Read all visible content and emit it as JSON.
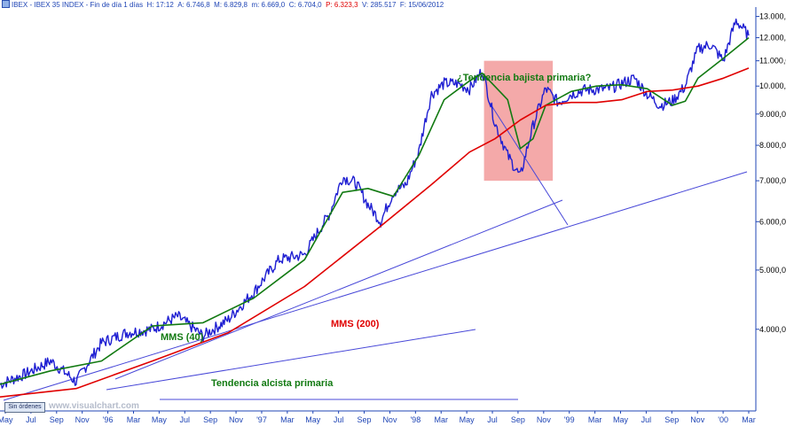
{
  "header": {
    "symbol": "IBEX",
    "name": "IBEX 35 INDEX",
    "period": "Fin de día 1 días",
    "high": "H: 17:12",
    "open": "A: 6.746,8",
    "max": "M: 6.829,8",
    "min": "m: 6.669,0",
    "close": "C: 6.704,0",
    "price": "P: 6.323,3",
    "volume": "V: 285.517",
    "date": "F: 15/06/2012"
  },
  "footer": {
    "button_label": "Sin órdenes",
    "watermark": "www.visualchart.com"
  },
  "colors": {
    "price": "#1e1ed2",
    "mms40": "#127a12",
    "mms200": "#e00000",
    "trend": "#4848d8",
    "box": "#f29a9a",
    "axis_text": "#1f45b5"
  },
  "chart_data": {
    "type": "line",
    "title": "",
    "xlabel": "",
    "ylabel": "",
    "y_axis_position": "right",
    "y_scale": "log",
    "ylim": [
      3000,
      13200
    ],
    "y_ticks": [
      4000,
      5000,
      6000,
      7000,
      8000,
      9000,
      10000,
      11000,
      12000,
      13000
    ],
    "y_tick_labels": [
      "4.000,0",
      "5.000,0",
      "6.000,0",
      "7.000,0",
      "8.000,0",
      "9.000,0",
      "10.000,0",
      "11.000,0",
      "12.000,0",
      "13.000,0"
    ],
    "x_range": [
      "1995-05",
      "2000-04"
    ],
    "x_tick_labels": [
      "May",
      "Jul",
      "Sep",
      "Nov",
      "'96",
      "Mar",
      "May",
      "Jul",
      "Sep",
      "Nov",
      "'97",
      "Mar",
      "May",
      "Jul",
      "Sep",
      "Nov",
      "'98",
      "Mar",
      "May",
      "Jul",
      "Sep",
      "Nov",
      "'99",
      "Mar",
      "May",
      "Jul",
      "Sep",
      "Nov",
      "'00",
      "Mar"
    ],
    "grid": false,
    "series": [
      {
        "name": "",
        "x": [
          "1995-05",
          "1995-07",
          "1995-09",
          "1995-11",
          "1996-01",
          "1996-03",
          "1996-05",
          "1996-07",
          "1996-09",
          "1996-11",
          "1997-01",
          "1997-03",
          "1997-05",
          "1997-07",
          "1997-08",
          "1997-09",
          "1997-10",
          "1997-11",
          "1997-12",
          "1998-01",
          "1998-02",
          "1998-03",
          "1998-04",
          "1998-05",
          "1998-06",
          "1998-07",
          "1998-08",
          "1998-09",
          "1998-10",
          "1998-11",
          "1998-12",
          "1999-01",
          "1999-02",
          "1999-03",
          "1999-05",
          "1999-07",
          "1999-08",
          "1999-09",
          "1999-10",
          "1999-11",
          "1999-12",
          "2000-01",
          "2000-02",
          "2000-03",
          "2000-04"
        ],
        "values": [
          3250,
          3380,
          3550,
          3280,
          3800,
          3950,
          4000,
          4200,
          3900,
          4150,
          4600,
          5200,
          5300,
          6200,
          7100,
          6950,
          6400,
          6000,
          6700,
          6900,
          7800,
          9700,
          10100,
          10100,
          9900,
          10600,
          8700,
          7700,
          7100,
          8600,
          9900,
          9400,
          9700,
          9850,
          9900,
          10300,
          9700,
          9300,
          9450,
          10000,
          11500,
          11700,
          11000,
          12800,
          12100
        ]
      },
      {
        "name": "MMS (40)",
        "x": [
          "1995-05",
          "1995-09",
          "1996-01",
          "1996-05",
          "1996-09",
          "1997-01",
          "1997-05",
          "1997-08",
          "1997-10",
          "1997-12",
          "1998-02",
          "1998-04",
          "1998-06",
          "1998-07",
          "1998-09",
          "1998-10",
          "1998-11",
          "1998-12",
          "1999-02",
          "1999-04",
          "1999-06",
          "1999-08",
          "1999-10",
          "1999-11",
          "1999-12",
          "2000-02",
          "2000-04"
        ],
        "values": [
          3250,
          3420,
          3550,
          4050,
          4100,
          4500,
          5200,
          6700,
          6800,
          6600,
          7700,
          9500,
          10200,
          10500,
          9500,
          7900,
          8200,
          9300,
          9800,
          10000,
          10050,
          9900,
          9300,
          9450,
          10300,
          11100,
          12000
        ]
      },
      {
        "name": "MMS (200)",
        "x": [
          "1995-05",
          "1995-11",
          "1996-05",
          "1996-11",
          "1997-05",
          "1997-11",
          "1998-03",
          "1998-06",
          "1998-08",
          "1998-10",
          "1998-12",
          "1999-02",
          "1999-04",
          "1999-06",
          "1999-08",
          "1999-10",
          "1999-12",
          "2000-02",
          "2000-04"
        ],
        "values": [
          3100,
          3200,
          3550,
          3950,
          4700,
          5900,
          6900,
          7800,
          8200,
          8800,
          9300,
          9400,
          9400,
          9500,
          9800,
          9850,
          10000,
          10300,
          10700
        ]
      }
    ],
    "annotations": [
      {
        "text": "¿Tendencia bajista primaria?",
        "color": "#127a12"
      },
      {
        "text": "MMS (40)",
        "color": "#127a12"
      },
      {
        "text": "MMS (200)",
        "color": "#e00000"
      },
      {
        "text": "Tendencia alcista primaria",
        "color": "#127a12"
      }
    ],
    "highlight_box": {
      "x_range": [
        "1998-07",
        "1998-12"
      ],
      "y_range": [
        7000,
        11000
      ]
    }
  }
}
